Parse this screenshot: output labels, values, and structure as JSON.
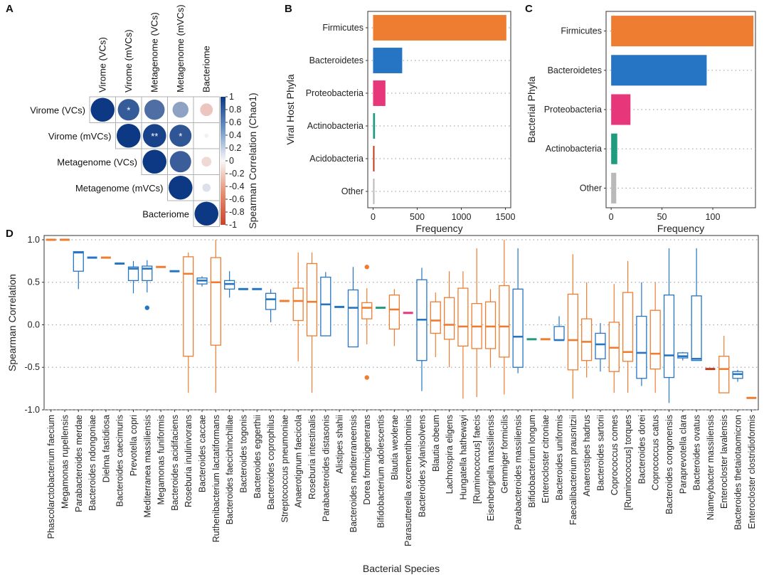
{
  "chart_data": [
    {
      "panel": "A",
      "type": "heatmap",
      "variables": [
        "Virome (VCs)",
        "Virome (mVCs)",
        "Metagenome (VCs)",
        "Metagenome (mVCs)",
        "Bacteriome"
      ],
      "matrix": [
        [
          1.0,
          0.82,
          0.72,
          0.45,
          0.28
        ],
        [
          null,
          1.0,
          0.95,
          0.85,
          0.03
        ],
        [
          null,
          null,
          1.0,
          0.8,
          0.17
        ],
        [
          null,
          null,
          null,
          1.0,
          0.12
        ],
        [
          null,
          null,
          null,
          null,
          1.0
        ]
      ],
      "signs": [
        [
          1,
          1,
          1,
          1,
          -1
        ],
        [
          0,
          1,
          1,
          1,
          1
        ],
        [
          0,
          0,
          1,
          1,
          -1
        ],
        [
          0,
          0,
          0,
          1,
          1
        ],
        [
          0,
          0,
          0,
          0,
          1
        ]
      ],
      "significance": [
        [
          "",
          "*",
          "",
          "",
          ""
        ],
        [
          "",
          "",
          "**",
          "*",
          ""
        ],
        [
          "",
          "",
          "",
          "",
          ""
        ],
        [
          "",
          "",
          "",
          "",
          ""
        ],
        [
          "",
          "",
          "",
          "",
          ""
        ]
      ],
      "colorbar": {
        "ticks": [
          "1",
          "0.8",
          "0.6",
          "0.4",
          "0.2",
          "0",
          "-0.2",
          "-0.4",
          "-0.6",
          "-0.8",
          "-1"
        ],
        "title": "Spearman Correlation (Chao1)"
      }
    },
    {
      "panel": "B",
      "type": "bar",
      "orientation": "horizontal",
      "categories": [
        "Firmicutes",
        "Bacteroidetes",
        "Proteobacteria",
        "Actinobacteria",
        "Acidobacteria",
        "Other"
      ],
      "values": [
        1510,
        330,
        140,
        22,
        14,
        8
      ],
      "colors": [
        "#ee7d31",
        "#2575c4",
        "#e8367b",
        "#1f9b7e",
        "#c0391b",
        "#b9b9b9"
      ],
      "xticks": [
        "0",
        "500",
        "1000",
        "1500"
      ],
      "xlim": [
        -60,
        1560
      ],
      "xlabel": "Frequency",
      "ylabel": "Viral Host Phyla"
    },
    {
      "panel": "C",
      "type": "bar",
      "orientation": "horizontal",
      "categories": [
        "Firmicutes",
        "Bacteroidetes",
        "Proteobacteria",
        "Actinobacteria",
        "Other"
      ],
      "values": [
        140,
        94,
        19,
        6,
        5
      ],
      "colors": [
        "#ee7d31",
        "#2575c4",
        "#e8367b",
        "#1f9b7e",
        "#b9b9b9"
      ],
      "xticks": [
        "0",
        "50",
        "100"
      ],
      "xlim": [
        -5,
        142
      ],
      "xlabel": "Frequency",
      "ylabel": "Bacterial Phyla"
    },
    {
      "panel": "D",
      "type": "box",
      "title": "",
      "xlabel": "Bacterial Species",
      "ylabel": "Spearman Correlation",
      "ylim": [
        -1.0,
        1.05
      ],
      "yticks": [
        "1.0",
        "0.5",
        "0.0",
        "-0.5",
        "-1.0"
      ],
      "boxes": [
        {
          "name": "Phascolarctobacterium faecium",
          "color": "#ee7d31",
          "q1": 1.0,
          "median": 1.0,
          "q3": 1.0,
          "lo": 1.0,
          "hi": 1.0,
          "outliers": []
        },
        {
          "name": "Megamonas rupellensis",
          "color": "#ee7d31",
          "q1": 1.0,
          "median": 1.0,
          "q3": 1.0,
          "lo": 1.0,
          "hi": 1.0,
          "outliers": []
        },
        {
          "name": "Parabacteroides merdae",
          "color": "#2575c4",
          "q1": 0.63,
          "median": 0.85,
          "q3": 0.86,
          "lo": 0.42,
          "hi": 0.86,
          "outliers": []
        },
        {
          "name": "Bacteroides ndongoniae",
          "color": "#2575c4",
          "q1": 0.79,
          "median": 0.79,
          "q3": 0.79,
          "lo": 0.79,
          "hi": 0.79,
          "outliers": []
        },
        {
          "name": "Dielma fastidiosa",
          "color": "#ee7d31",
          "q1": 0.79,
          "median": 0.79,
          "q3": 0.79,
          "lo": 0.79,
          "hi": 0.79,
          "outliers": []
        },
        {
          "name": "Bacteroides caecimuris",
          "color": "#2575c4",
          "q1": 0.72,
          "median": 0.72,
          "q3": 0.72,
          "lo": 0.72,
          "hi": 0.72,
          "outliers": []
        },
        {
          "name": "Prevotella copri",
          "color": "#2575c4",
          "q1": 0.52,
          "median": 0.66,
          "q3": 0.68,
          "lo": 0.37,
          "hi": 0.75,
          "outliers": []
        },
        {
          "name": "Mediterranea massiliensis",
          "color": "#2575c4",
          "q1": 0.52,
          "median": 0.66,
          "q3": 0.69,
          "lo": 0.38,
          "hi": 0.76,
          "outliers": [
            0.2
          ]
        },
        {
          "name": "Megamonas funiformis",
          "color": "#ee7d31",
          "q1": 0.68,
          "median": 0.68,
          "q3": 0.68,
          "lo": 0.68,
          "hi": 0.68,
          "outliers": []
        },
        {
          "name": "Bacteroides acidifaciens",
          "color": "#2575c4",
          "q1": 0.63,
          "median": 0.63,
          "q3": 0.63,
          "lo": 0.63,
          "hi": 0.63,
          "outliers": []
        },
        {
          "name": "Roseburia inulinivorans",
          "color": "#ee7d31",
          "q1": -0.37,
          "median": 0.6,
          "q3": 0.8,
          "lo": -0.8,
          "hi": 0.85,
          "outliers": []
        },
        {
          "name": "Bacteroides caccae",
          "color": "#2575c4",
          "q1": 0.48,
          "median": 0.52,
          "q3": 0.55,
          "lo": 0.45,
          "hi": 0.57,
          "outliers": []
        },
        {
          "name": "Ruthenibacterium lactatiformans",
          "color": "#ee7d31",
          "q1": -0.24,
          "median": 0.5,
          "q3": 0.79,
          "lo": -0.8,
          "hi": 1.0,
          "outliers": []
        },
        {
          "name": "Bacteroides faecichinchillae",
          "color": "#2575c4",
          "q1": 0.42,
          "median": 0.48,
          "q3": 0.52,
          "lo": 0.32,
          "hi": 0.63,
          "outliers": []
        },
        {
          "name": "Bacteroides togonis",
          "color": "#2575c4",
          "q1": 0.42,
          "median": 0.42,
          "q3": 0.42,
          "lo": 0.42,
          "hi": 0.42,
          "outliers": []
        },
        {
          "name": "Bacteroides eggerthii",
          "color": "#2575c4",
          "q1": 0.42,
          "median": 0.42,
          "q3": 0.42,
          "lo": 0.42,
          "hi": 0.42,
          "outliers": []
        },
        {
          "name": "Bacteroides coprophilus",
          "color": "#2575c4",
          "q1": 0.18,
          "median": 0.3,
          "q3": 0.37,
          "lo": 0.03,
          "hi": 0.42,
          "outliers": []
        },
        {
          "name": "Streptococcus pneumoniae",
          "color": "#ee7d31",
          "q1": 0.28,
          "median": 0.28,
          "q3": 0.28,
          "lo": 0.28,
          "hi": 0.28,
          "outliers": []
        },
        {
          "name": "Anaerotignum faecicola",
          "color": "#ee7d31",
          "q1": 0.05,
          "median": 0.28,
          "q3": 0.43,
          "lo": -0.43,
          "hi": 0.85,
          "outliers": []
        },
        {
          "name": "Roseburia intestinalis",
          "color": "#ee7d31",
          "q1": -0.13,
          "median": 0.27,
          "q3": 0.72,
          "lo": -0.8,
          "hi": 0.85,
          "outliers": []
        },
        {
          "name": "Parabacteroides distasonis",
          "color": "#2575c4",
          "q1": -0.13,
          "median": 0.24,
          "q3": 0.56,
          "lo": -0.13,
          "hi": 0.62,
          "outliers": []
        },
        {
          "name": "Alistipes shahii",
          "color": "#2575c4",
          "q1": 0.21,
          "median": 0.21,
          "q3": 0.21,
          "lo": 0.21,
          "hi": 0.21,
          "outliers": []
        },
        {
          "name": "Bacteroides mediterraneensis",
          "color": "#2575c4",
          "q1": -0.26,
          "median": 0.2,
          "q3": 0.41,
          "lo": -0.26,
          "hi": 0.68,
          "outliers": []
        },
        {
          "name": "Dorea formicigenerans",
          "color": "#ee7d31",
          "q1": 0.07,
          "median": 0.2,
          "q3": 0.26,
          "lo": -0.23,
          "hi": 0.43,
          "outliers": [
            0.68,
            -0.62
          ]
        },
        {
          "name": "Bifidobacterium adolescentis",
          "color": "#1f9b7e",
          "q1": 0.2,
          "median": 0.2,
          "q3": 0.2,
          "lo": 0.2,
          "hi": 0.2,
          "outliers": []
        },
        {
          "name": "Blautia wexlerae",
          "color": "#ee7d31",
          "q1": -0.05,
          "median": 0.18,
          "q3": 0.35,
          "lo": -0.25,
          "hi": 0.42,
          "outliers": []
        },
        {
          "name": "Parasutterella excrementihominis",
          "color": "#e8367b",
          "q1": 0.14,
          "median": 0.14,
          "q3": 0.14,
          "lo": 0.14,
          "hi": 0.14,
          "outliers": []
        },
        {
          "name": "Bacteroides xylanisolvens",
          "color": "#2575c4",
          "q1": -0.42,
          "median": 0.06,
          "q3": 0.53,
          "lo": -0.78,
          "hi": 0.67,
          "outliers": []
        },
        {
          "name": "Blautia obeum",
          "color": "#ee7d31",
          "q1": -0.1,
          "median": 0.05,
          "q3": 0.27,
          "lo": -0.38,
          "hi": 0.38,
          "outliers": []
        },
        {
          "name": "Lachnospira eligens",
          "color": "#ee7d31",
          "q1": -0.17,
          "median": 0.0,
          "q3": 0.32,
          "lo": -0.5,
          "hi": 0.63,
          "outliers": []
        },
        {
          "name": "Hungatella hathewayi",
          "color": "#ee7d31",
          "q1": -0.25,
          "median": -0.02,
          "q3": 0.43,
          "lo": -0.87,
          "hi": 0.63,
          "outliers": []
        },
        {
          "name": "[Ruminococcus] faecis",
          "color": "#ee7d31",
          "q1": -0.28,
          "median": -0.02,
          "q3": 0.25,
          "lo": -0.85,
          "hi": 0.9,
          "outliers": []
        },
        {
          "name": "Eisenbergiella massiliensis",
          "color": "#ee7d31",
          "q1": -0.28,
          "median": -0.02,
          "q3": 0.27,
          "lo": -0.5,
          "hi": 0.42,
          "outliers": []
        },
        {
          "name": "Gemmiger formicilis",
          "color": "#ee7d31",
          "q1": -0.38,
          "median": -0.02,
          "q3": 0.46,
          "lo": -0.82,
          "hi": 1.0,
          "outliers": []
        },
        {
          "name": "Parabacteroides massiliensis",
          "color": "#2575c4",
          "q1": -0.5,
          "median": -0.14,
          "q3": 0.42,
          "lo": -0.57,
          "hi": 0.9,
          "outliers": []
        },
        {
          "name": "Bifidobacterium longum",
          "color": "#1f9b7e",
          "q1": -0.17,
          "median": -0.17,
          "q3": -0.17,
          "lo": -0.17,
          "hi": -0.17,
          "outliers": []
        },
        {
          "name": "Enterocloster citroniae",
          "color": "#ee7d31",
          "q1": -0.17,
          "median": -0.17,
          "q3": -0.17,
          "lo": -0.17,
          "hi": -0.17,
          "outliers": []
        },
        {
          "name": "Bacteroides uniformis",
          "color": "#2575c4",
          "q1": -0.18,
          "median": -0.18,
          "q3": -0.02,
          "lo": -0.18,
          "hi": 0.1,
          "outliers": []
        },
        {
          "name": "Faecalibacterium prausnitzii",
          "color": "#ee7d31",
          "q1": -0.53,
          "median": -0.18,
          "q3": 0.36,
          "lo": -0.87,
          "hi": 0.83,
          "outliers": []
        },
        {
          "name": "Anaerostipes hadrus",
          "color": "#ee7d31",
          "q1": -0.42,
          "median": -0.2,
          "q3": 0.07,
          "lo": -0.62,
          "hi": 0.5,
          "outliers": []
        },
        {
          "name": "Bacteroides sartorii",
          "color": "#2575c4",
          "q1": -0.4,
          "median": -0.23,
          "q3": -0.1,
          "lo": -0.55,
          "hi": 0.02,
          "outliers": []
        },
        {
          "name": "Coprococcus comes",
          "color": "#ee7d31",
          "q1": -0.55,
          "median": -0.27,
          "q3": 0.03,
          "lo": -0.8,
          "hi": 0.48,
          "outliers": []
        },
        {
          "name": "[Ruminococcus] torques",
          "color": "#ee7d31",
          "q1": -0.43,
          "median": -0.32,
          "q3": 0.38,
          "lo": -0.8,
          "hi": 0.75,
          "outliers": []
        },
        {
          "name": "Bacteroides dorei",
          "color": "#2575c4",
          "q1": -0.63,
          "median": -0.33,
          "q3": 0.1,
          "lo": -0.72,
          "hi": 0.5,
          "outliers": []
        },
        {
          "name": "Coprococcus catus",
          "color": "#ee7d31",
          "q1": -0.52,
          "median": -0.34,
          "q3": 0.17,
          "lo": -0.8,
          "hi": 0.5,
          "outliers": []
        },
        {
          "name": "Bacteroides congonensis",
          "color": "#2575c4",
          "q1": -0.62,
          "median": -0.36,
          "q3": 0.35,
          "lo": -0.92,
          "hi": 0.9,
          "outliers": []
        },
        {
          "name": "Paraprevotella clara",
          "color": "#2575c4",
          "q1": -0.39,
          "median": -0.37,
          "q3": -0.33,
          "lo": -0.42,
          "hi": -0.32,
          "outliers": []
        },
        {
          "name": "Bacteroides ovatus",
          "color": "#2575c4",
          "q1": -0.42,
          "median": -0.4,
          "q3": 0.34,
          "lo": -0.42,
          "hi": 0.9,
          "outliers": []
        },
        {
          "name": "Niameybacter massiliensis",
          "color": "#c0391b",
          "q1": -0.52,
          "median": -0.52,
          "q3": -0.52,
          "lo": -0.52,
          "hi": -0.52,
          "outliers": []
        },
        {
          "name": "Enterocloster lavalensis",
          "color": "#ee7d31",
          "q1": -0.8,
          "median": -0.52,
          "q3": -0.37,
          "lo": -0.8,
          "hi": -0.13,
          "outliers": []
        },
        {
          "name": "Bacteroides thetaiotaomicron",
          "color": "#2575c4",
          "q1": -0.63,
          "median": -0.58,
          "q3": -0.55,
          "lo": -0.67,
          "hi": -0.53,
          "outliers": []
        },
        {
          "name": "Enterocloster clostridioformis",
          "color": "#ee7d31",
          "q1": -0.86,
          "median": -0.86,
          "q3": -0.86,
          "lo": -0.86,
          "hi": -0.86,
          "outliers": []
        }
      ]
    }
  ]
}
